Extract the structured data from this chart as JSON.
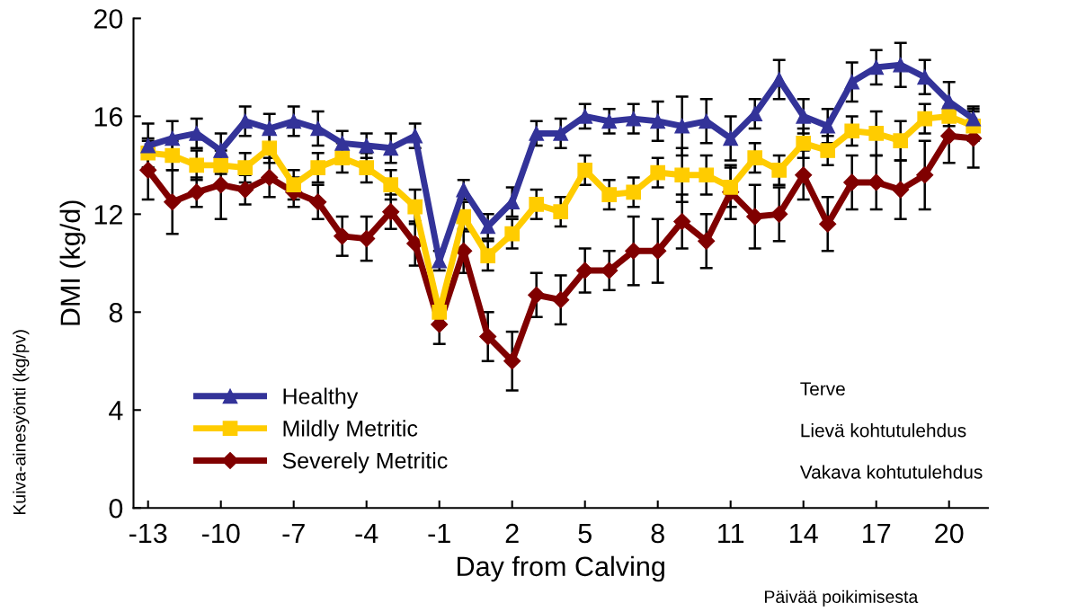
{
  "chart_data": {
    "type": "line",
    "xlabel": "Day from Calving",
    "ylabel": "DMI (kg/d)",
    "x": [
      -13,
      -12,
      -11,
      -10,
      -9,
      -8,
      -7,
      -6,
      -5,
      -4,
      -3,
      -2,
      -1,
      0,
      1,
      2,
      3,
      4,
      5,
      6,
      7,
      8,
      9,
      10,
      11,
      12,
      13,
      14,
      15,
      16,
      17,
      18,
      19,
      20,
      21
    ],
    "series": [
      {
        "name": "Healthy",
        "color": "#333399",
        "marker": "triangle",
        "values": [
          14.8,
          15.1,
          15.3,
          14.6,
          15.8,
          15.5,
          15.8,
          15.5,
          14.9,
          14.8,
          14.7,
          15.2,
          10.1,
          13.0,
          11.5,
          12.5,
          15.3,
          15.3,
          16.0,
          15.8,
          15.9,
          15.8,
          15.6,
          15.8,
          15.1,
          16.1,
          17.5,
          16.0,
          15.6,
          17.4,
          18.0,
          18.1,
          17.6,
          16.6,
          15.9
        ],
        "errors": [
          0.9,
          0.7,
          0.6,
          0.7,
          0.6,
          0.6,
          0.6,
          0.7,
          0.5,
          0.5,
          0.6,
          0.5,
          0.4,
          0.4,
          0.5,
          0.6,
          0.5,
          0.6,
          0.5,
          0.5,
          0.6,
          0.8,
          1.2,
          0.9,
          0.9,
          0.6,
          0.8,
          0.7,
          0.7,
          0.8,
          0.7,
          0.9,
          0.7,
          0.8,
          0.5
        ]
      },
      {
        "name": "Mildly Metritic",
        "color": "#ffcc00",
        "marker": "square",
        "values": [
          14.5,
          14.4,
          14.0,
          14.0,
          13.9,
          14.7,
          13.2,
          13.9,
          14.3,
          13.9,
          13.2,
          12.3,
          8.0,
          11.9,
          10.3,
          11.2,
          12.4,
          12.1,
          13.8,
          12.8,
          12.9,
          13.7,
          13.6,
          13.6,
          13.1,
          14.3,
          13.8,
          14.9,
          14.6,
          15.4,
          15.3,
          15.0,
          15.9,
          16.0,
          15.6
        ],
        "errors": [
          0.6,
          0.6,
          0.6,
          0.35,
          0.6,
          0.6,
          0.6,
          0.6,
          0.6,
          0.6,
          0.6,
          0.7,
          null,
          0.6,
          0.6,
          0.6,
          0.6,
          0.6,
          0.6,
          0.6,
          0.6,
          0.6,
          1.1,
          0.8,
          0.8,
          0.6,
          0.6,
          0.6,
          0.6,
          0.6,
          0.9,
          0.8,
          0.6,
          0.4,
          0.6
        ]
      },
      {
        "name": "Severely Metritic",
        "color": "#800000",
        "marker": "diamond",
        "values": [
          13.8,
          12.5,
          12.9,
          13.2,
          13.0,
          13.5,
          12.9,
          12.5,
          11.1,
          11.0,
          12.1,
          10.8,
          7.5,
          10.5,
          7.0,
          6.0,
          8.7,
          8.5,
          9.7,
          9.7,
          10.5,
          10.5,
          11.7,
          10.9,
          12.9,
          11.9,
          12.0,
          13.6,
          11.6,
          13.3,
          13.3,
          13.0,
          13.6,
          15.2,
          15.1
        ],
        "errors": [
          1.2,
          1.3,
          0.6,
          1.4,
          0.6,
          0.8,
          0.6,
          0.7,
          0.8,
          0.9,
          0.7,
          0.9,
          0.8,
          0.9,
          1.0,
          1.2,
          0.9,
          1.0,
          0.9,
          0.8,
          1.4,
          1.3,
          1.1,
          1.1,
          1.1,
          1.3,
          1.1,
          1.0,
          1.1,
          1.1,
          1.1,
          1.2,
          1.4,
          1.1,
          1.2
        ]
      }
    ],
    "xlim": [
      -13.6,
      21.6
    ],
    "xticks": [
      -13,
      -10,
      -7,
      -4,
      -1,
      2,
      5,
      8,
      11,
      14,
      17,
      20
    ],
    "ylim": [
      0,
      20
    ],
    "yticks": [
      0,
      4,
      8,
      12,
      16,
      20
    ],
    "grid": false,
    "legend": "bottom left",
    "line_style": "solid",
    "annotations": [
      "Terve",
      "Lievä kohtutulehdus",
      "Vakava kohtutulehdus",
      "Kuiva-ainesyönti (kg/pv)",
      "Päivää poikimisesta"
    ]
  }
}
